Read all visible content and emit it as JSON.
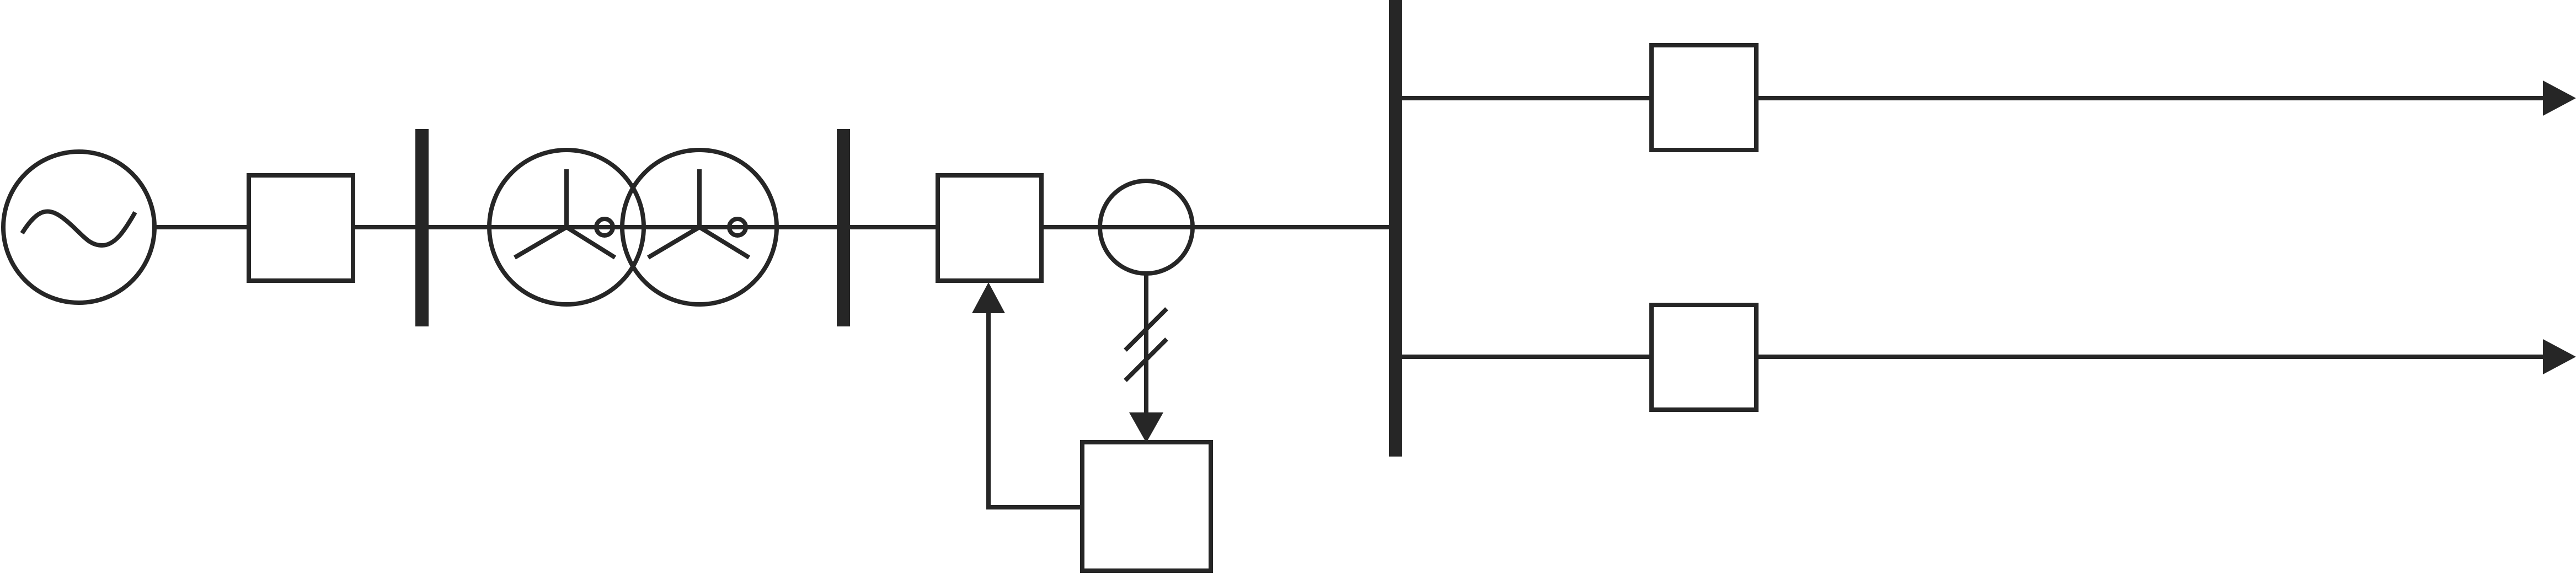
{
  "diagram": {
    "kind": "single-line power system schematic",
    "stroke_color": "#262626",
    "background_color": "#ffffff",
    "components": [
      {
        "id": "generator",
        "icon": "ac-generator-symbol"
      },
      {
        "id": "generator-circuit-breaker",
        "icon": "box"
      },
      {
        "id": "low-voltage-bus",
        "icon": "vertical-bus-bar"
      },
      {
        "id": "step-up-transformer",
        "icon": "two-winding-transformer-wye-grounded"
      },
      {
        "id": "high-voltage-bus",
        "icon": "vertical-bus-bar"
      },
      {
        "id": "line-circuit-breaker",
        "icon": "box"
      },
      {
        "id": "current-transformer",
        "icon": "circle"
      },
      {
        "id": "protection-relay",
        "icon": "box"
      },
      {
        "id": "main-bus",
        "icon": "vertical-bus-bar"
      },
      {
        "id": "feeder-1-breaker",
        "icon": "box"
      },
      {
        "id": "feeder-2-breaker",
        "icon": "box"
      }
    ],
    "outgoing_feeders": 2,
    "text_labels": []
  }
}
